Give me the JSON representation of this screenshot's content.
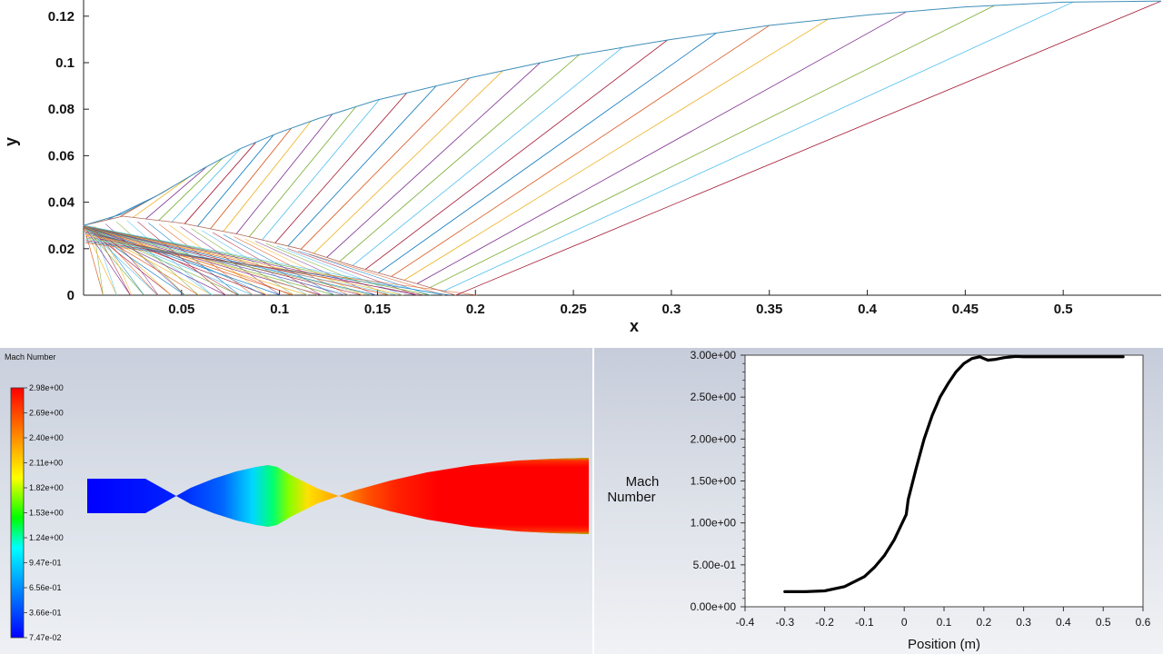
{
  "chart_data": [
    {
      "type": "line",
      "description": "method of characteristics nozzle wall and characteristic lines",
      "xlabel": "x",
      "ylabel": "y",
      "xlim": [
        0,
        0.55
      ],
      "ylim": [
        0,
        0.125
      ],
      "xticks": [
        "0.05",
        "0.1",
        "0.15",
        "0.2",
        "0.25",
        "0.3",
        "0.35",
        "0.4",
        "0.45",
        "0.5"
      ],
      "yticks": [
        "0",
        "0.02",
        "0.04",
        "0.06",
        "0.08",
        "0.1",
        "0.12"
      ],
      "wall": {
        "x": [
          0,
          0.02,
          0.04,
          0.06,
          0.08,
          0.1,
          0.12,
          0.15,
          0.2,
          0.25,
          0.3,
          0.35,
          0.4,
          0.45,
          0.5,
          0.55
        ],
        "y": [
          0.03,
          0.035,
          0.044,
          0.054,
          0.063,
          0.07,
          0.076,
          0.084,
          0.094,
          0.103,
          0.11,
          0.116,
          0.1205,
          0.124,
          0.126,
          0.1265
        ]
      },
      "kernel_edge": {
        "x": [
          0,
          0.02,
          0.05,
          0.08,
          0.11,
          0.14,
          0.17,
          0.19
        ],
        "y": [
          0.03,
          0.034,
          0.031,
          0.026,
          0.02,
          0.012,
          0.005,
          0
        ]
      },
      "wall_reflection_x": [
        0.037,
        0.046,
        0.055,
        0.063,
        0.071,
        0.08,
        0.088,
        0.097,
        0.106,
        0.116,
        0.127,
        0.139,
        0.151,
        0.165,
        0.18,
        0.197,
        0.214,
        0.233,
        0.253,
        0.275,
        0.298,
        0.323,
        0.35,
        0.38,
        0.42,
        0.465,
        0.505,
        0.55
      ]
    },
    {
      "type": "heatmap",
      "title": "Mach Number",
      "colorbar_ticks": [
        "2.98e+00",
        "2.69e+00",
        "2.40e+00",
        "2.11e+00",
        "1.82e+00",
        "1.53e+00",
        "1.24e+00",
        "9.47e-01",
        "6.56e-01",
        "3.66e-01",
        "7.47e-02"
      ],
      "min": 0.0747,
      "max": 2.98
    },
    {
      "type": "line",
      "xlabel": "Position (m)",
      "ylabel": "Mach Number",
      "xlim": [
        -0.4,
        0.6
      ],
      "ylim": [
        0,
        3.0
      ],
      "xticks": [
        "-0.4",
        "-0.3",
        "-0.2",
        "-0.1",
        "0",
        "0.1",
        "0.2",
        "0.3",
        "0.4",
        "0.5",
        "0.6"
      ],
      "yticks": [
        "0.00e+00",
        "5.00e-01",
        "1.00e+00",
        "1.50e+00",
        "2.00e+00",
        "2.50e+00",
        "3.00e+00"
      ],
      "series": [
        {
          "x": [
            -0.3,
            -0.25,
            -0.2,
            -0.15,
            -0.1,
            -0.075,
            -0.05,
            -0.025,
            0.0,
            0.005,
            0.01,
            0.03,
            0.05,
            0.07,
            0.09,
            0.11,
            0.13,
            0.15,
            0.17,
            0.19,
            0.2,
            0.21,
            0.23,
            0.25,
            0.28,
            0.3,
            0.4,
            0.5,
            0.55
          ],
          "y": [
            0.18,
            0.18,
            0.19,
            0.24,
            0.36,
            0.47,
            0.61,
            0.8,
            1.05,
            1.1,
            1.28,
            1.65,
            2.0,
            2.28,
            2.5,
            2.66,
            2.8,
            2.9,
            2.96,
            2.98,
            2.96,
            2.94,
            2.95,
            2.97,
            2.985,
            2.98,
            2.98,
            2.98,
            2.98
          ]
        }
      ]
    }
  ]
}
